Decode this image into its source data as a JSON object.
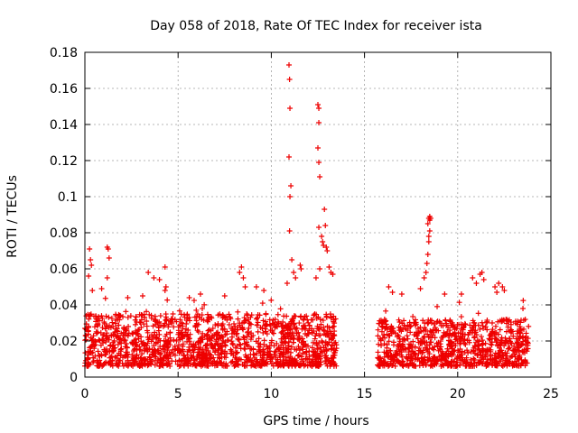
{
  "chart_data": {
    "type": "scatter",
    "title": "Day 058 of 2018, Rate Of TEC Index for receiver ista",
    "xlabel": "GPS time / hours",
    "ylabel": "ROTI / TECUs",
    "xlim": [
      0,
      25
    ],
    "ylim": [
      0,
      0.18
    ],
    "x_ticks": [
      0,
      5,
      10,
      15,
      20,
      25
    ],
    "x_tick_labels": [
      "0",
      "5",
      "10",
      "15",
      "20",
      "25"
    ],
    "y_ticks": [
      0,
      0.02,
      0.04,
      0.06,
      0.08,
      0.1,
      0.12,
      0.14,
      0.16,
      0.18
    ],
    "y_tick_labels": [
      "0",
      "0.02",
      "0.04",
      "0.06",
      "0.08",
      "0.1",
      "0.12",
      "0.14",
      "0.16",
      "0.18"
    ],
    "grid": true,
    "marker": "+",
    "color": "#ee0000",
    "series": [
      {
        "name": "ROTI",
        "segments": [
          {
            "start": 0.0,
            "end": 13.5,
            "base_low": 0.006,
            "base_high": 0.035
          },
          {
            "start": 15.7,
            "end": 23.8,
            "base_low": 0.006,
            "base_high": 0.032
          }
        ],
        "spikes": [
          {
            "x": 0.25,
            "y": 0.071
          },
          {
            "x": 0.3,
            "y": 0.065
          },
          {
            "x": 0.35,
            "y": 0.062
          },
          {
            "x": 0.2,
            "y": 0.056
          },
          {
            "x": 0.4,
            "y": 0.048
          },
          {
            "x": 1.2,
            "y": 0.072
          },
          {
            "x": 1.25,
            "y": 0.071
          },
          {
            "x": 1.3,
            "y": 0.066
          },
          {
            "x": 1.2,
            "y": 0.055
          },
          {
            "x": 0.9,
            "y": 0.049
          },
          {
            "x": 3.4,
            "y": 0.058
          },
          {
            "x": 3.7,
            "y": 0.055
          },
          {
            "x": 4.0,
            "y": 0.054
          },
          {
            "x": 4.3,
            "y": 0.061
          },
          {
            "x": 4.35,
            "y": 0.05
          },
          {
            "x": 4.3,
            "y": 0.048
          },
          {
            "x": 3.1,
            "y": 0.045
          },
          {
            "x": 2.3,
            "y": 0.044
          },
          {
            "x": 5.6,
            "y": 0.044
          },
          {
            "x": 6.2,
            "y": 0.046
          },
          {
            "x": 7.5,
            "y": 0.045
          },
          {
            "x": 8.3,
            "y": 0.058
          },
          {
            "x": 8.4,
            "y": 0.061
          },
          {
            "x": 8.5,
            "y": 0.055
          },
          {
            "x": 8.6,
            "y": 0.05
          },
          {
            "x": 9.2,
            "y": 0.05
          },
          {
            "x": 9.6,
            "y": 0.048
          },
          {
            "x": 10.95,
            "y": 0.173
          },
          {
            "x": 10.98,
            "y": 0.165
          },
          {
            "x": 11.0,
            "y": 0.149
          },
          {
            "x": 10.95,
            "y": 0.122
          },
          {
            "x": 11.05,
            "y": 0.106
          },
          {
            "x": 11.0,
            "y": 0.1
          },
          {
            "x": 10.98,
            "y": 0.081
          },
          {
            "x": 11.1,
            "y": 0.065
          },
          {
            "x": 11.2,
            "y": 0.058
          },
          {
            "x": 11.3,
            "y": 0.055
          },
          {
            "x": 10.85,
            "y": 0.052
          },
          {
            "x": 11.55,
            "y": 0.062
          },
          {
            "x": 11.6,
            "y": 0.06
          },
          {
            "x": 12.5,
            "y": 0.151
          },
          {
            "x": 12.55,
            "y": 0.149
          },
          {
            "x": 12.55,
            "y": 0.141
          },
          {
            "x": 12.5,
            "y": 0.127
          },
          {
            "x": 12.55,
            "y": 0.119
          },
          {
            "x": 12.6,
            "y": 0.111
          },
          {
            "x": 12.55,
            "y": 0.083
          },
          {
            "x": 12.7,
            "y": 0.078
          },
          {
            "x": 12.75,
            "y": 0.075
          },
          {
            "x": 12.8,
            "y": 0.073
          },
          {
            "x": 12.85,
            "y": 0.093
          },
          {
            "x": 12.9,
            "y": 0.084
          },
          {
            "x": 12.95,
            "y": 0.072
          },
          {
            "x": 13.0,
            "y": 0.07
          },
          {
            "x": 12.6,
            "y": 0.06
          },
          {
            "x": 13.1,
            "y": 0.061
          },
          {
            "x": 13.2,
            "y": 0.058
          },
          {
            "x": 13.3,
            "y": 0.057
          },
          {
            "x": 12.4,
            "y": 0.055
          },
          {
            "x": 16.3,
            "y": 0.05
          },
          {
            "x": 16.5,
            "y": 0.047
          },
          {
            "x": 17.0,
            "y": 0.046
          },
          {
            "x": 18.2,
            "y": 0.055
          },
          {
            "x": 18.3,
            "y": 0.058
          },
          {
            "x": 18.35,
            "y": 0.063
          },
          {
            "x": 18.4,
            "y": 0.068
          },
          {
            "x": 18.45,
            "y": 0.075
          },
          {
            "x": 18.45,
            "y": 0.078
          },
          {
            "x": 18.5,
            "y": 0.081
          },
          {
            "x": 18.4,
            "y": 0.085
          },
          {
            "x": 18.45,
            "y": 0.088
          },
          {
            "x": 18.5,
            "y": 0.089
          },
          {
            "x": 18.55,
            "y": 0.088
          },
          {
            "x": 18.5,
            "y": 0.087
          },
          {
            "x": 18.0,
            "y": 0.049
          },
          {
            "x": 19.3,
            "y": 0.046
          },
          {
            "x": 20.2,
            "y": 0.046
          },
          {
            "x": 20.8,
            "y": 0.055
          },
          {
            "x": 21.0,
            "y": 0.052
          },
          {
            "x": 21.2,
            "y": 0.057
          },
          {
            "x": 21.3,
            "y": 0.058
          },
          {
            "x": 21.4,
            "y": 0.054
          },
          {
            "x": 22.0,
            "y": 0.05
          },
          {
            "x": 22.2,
            "y": 0.052
          },
          {
            "x": 22.4,
            "y": 0.05
          },
          {
            "x": 22.5,
            "y": 0.048
          },
          {
            "x": 22.1,
            "y": 0.047
          },
          {
            "x": 23.5,
            "y": 0.038
          }
        ]
      }
    ]
  }
}
